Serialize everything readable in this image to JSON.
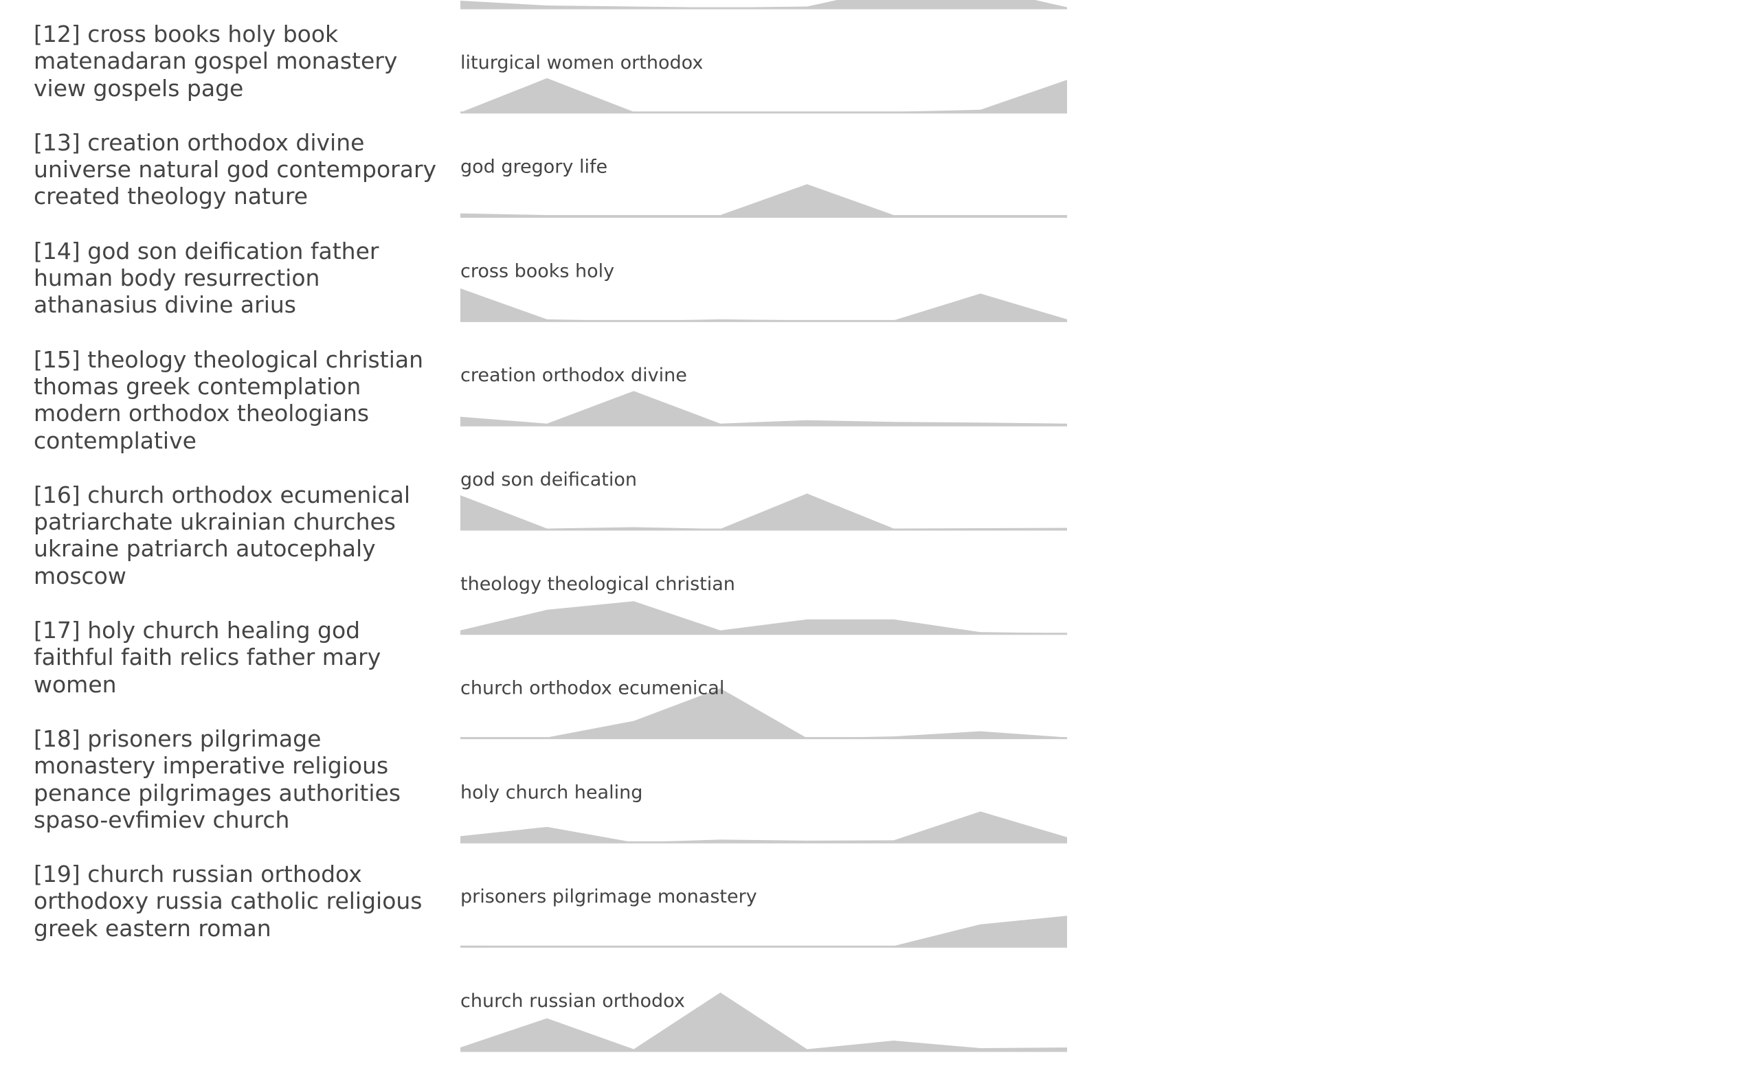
{
  "topics": [
    {
      "id": "[12]",
      "terms": "cross books holy book matenadaran gospel monastery view gospels page"
    },
    {
      "id": "[13]",
      "terms": "creation orthodox divine universe natural god contemporary created theology nature"
    },
    {
      "id": "[14]",
      "terms": "god son deification father human body resurrection athanasius divine arius"
    },
    {
      "id": "[15]",
      "terms": "theology theological christian thomas greek contemplation modern orthodox theologians contemplative"
    },
    {
      "id": "[16]",
      "terms": "church orthodox ecumenical patriarchate ukrainian churches ukraine patriarch autocephaly moscow"
    },
    {
      "id": "[17]",
      "terms": "holy church healing god faithful faith relics father mary women"
    },
    {
      "id": "[18]",
      "terms": "prisoners pilgrimage monastery imperative religious penance pilgrimages authorities spaso-evfimiev church"
    },
    {
      "id": "[19]",
      "terms": "church russian orthodox orthodoxy russia catholic religious greek eastern roman"
    }
  ],
  "chart_data": {
    "type": "area",
    "ylim": [
      0,
      1
    ],
    "series": [
      {
        "name": "",
        "values": [
          0.22,
          0.08,
          0.05,
          0.02,
          0.05,
          0.6,
          0.6,
          0.03
        ]
      },
      {
        "name": "liturgical women orthodox",
        "values": [
          0.0,
          1.0,
          0.02,
          0.02,
          0.02,
          0.02,
          0.08,
          0.95
        ]
      },
      {
        "name": "god gregory life",
        "values": [
          0.1,
          0.05,
          0.05,
          0.05,
          0.95,
          0.05,
          0.05,
          0.05
        ]
      },
      {
        "name": "cross books holy",
        "values": [
          0.95,
          0.05,
          0.0,
          0.05,
          0.02,
          0.02,
          0.8,
          0.05
        ]
      },
      {
        "name": "creation orthodox divine",
        "values": [
          0.25,
          0.05,
          1.0,
          0.05,
          0.15,
          0.1,
          0.08,
          0.05
        ]
      },
      {
        "name": "god son deification",
        "values": [
          1.0,
          0.03,
          0.07,
          0.02,
          1.05,
          0.03,
          0.04,
          0.05
        ]
      },
      {
        "name": "theology theological christian",
        "values": [
          0.1,
          0.7,
          0.95,
          0.1,
          0.42,
          0.42,
          0.05,
          0.02
        ]
      },
      {
        "name": "church orthodox ecumenical",
        "values": [
          0.0,
          0.02,
          0.5,
          1.45,
          0.0,
          0.05,
          0.2,
          0.02
        ]
      },
      {
        "name": "holy church healing",
        "values": [
          0.18,
          0.45,
          0.0,
          0.08,
          0.05,
          0.06,
          0.9,
          0.15
        ]
      },
      {
        "name": "prisoners pilgrimage monastery",
        "values": [
          0.03,
          0.02,
          0.02,
          0.0,
          0.0,
          0.02,
          0.65,
          0.9
        ]
      },
      {
        "name": "church russian orthodox",
        "values": [
          0.1,
          0.95,
          0.05,
          1.7,
          0.05,
          0.3,
          0.08,
          0.1
        ]
      }
    ]
  }
}
